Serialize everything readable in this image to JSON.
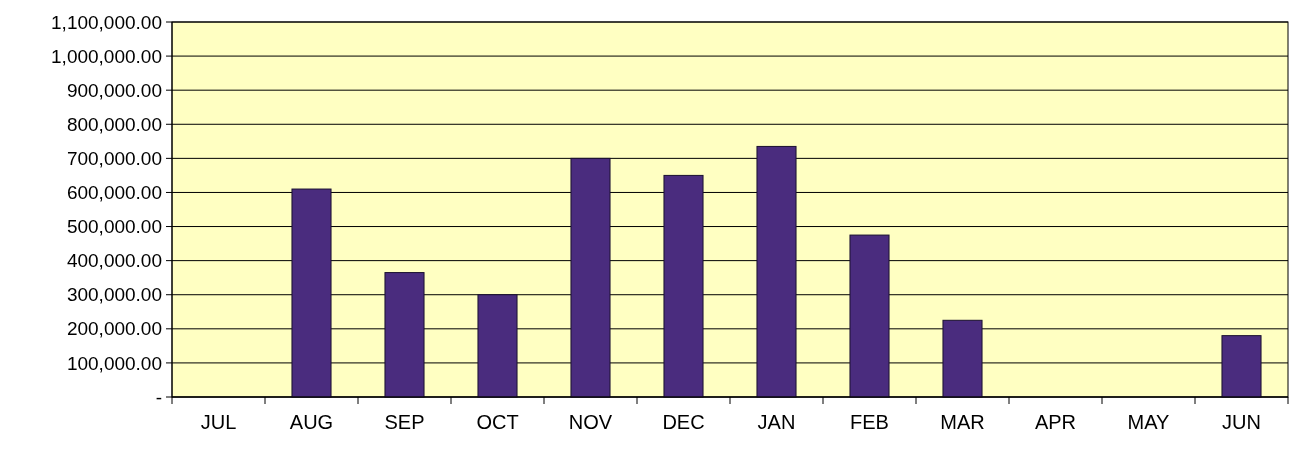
{
  "chart_data": {
    "type": "bar",
    "categories": [
      "JUL",
      "AUG",
      "SEP",
      "OCT",
      "NOV",
      "DEC",
      "JAN",
      "FEB",
      "MAR",
      "APR",
      "MAY",
      "JUN"
    ],
    "values": [
      0,
      610000,
      365000,
      300000,
      700000,
      650000,
      735000,
      475000,
      225000,
      0,
      0,
      180000
    ],
    "color": "#4a2c7e",
    "ylim": [
      0,
      1100000
    ],
    "yticks": [
      {
        "value": 0,
        "label": "-"
      },
      {
        "value": 100000,
        "label": "100,000.00"
      },
      {
        "value": 200000,
        "label": "200,000.00"
      },
      {
        "value": 300000,
        "label": "300,000.00"
      },
      {
        "value": 400000,
        "label": "400,000.00"
      },
      {
        "value": 500000,
        "label": "500,000.00"
      },
      {
        "value": 600000,
        "label": "600,000.00"
      },
      {
        "value": 700000,
        "label": "700,000.00"
      },
      {
        "value": 800000,
        "label": "800,000.00"
      },
      {
        "value": 900000,
        "label": "900,000.00"
      },
      {
        "value": 1000000,
        "label": "1,000,000.00"
      },
      {
        "value": 1100000,
        "label": "1,100,000.00"
      }
    ],
    "grid": "y"
  }
}
